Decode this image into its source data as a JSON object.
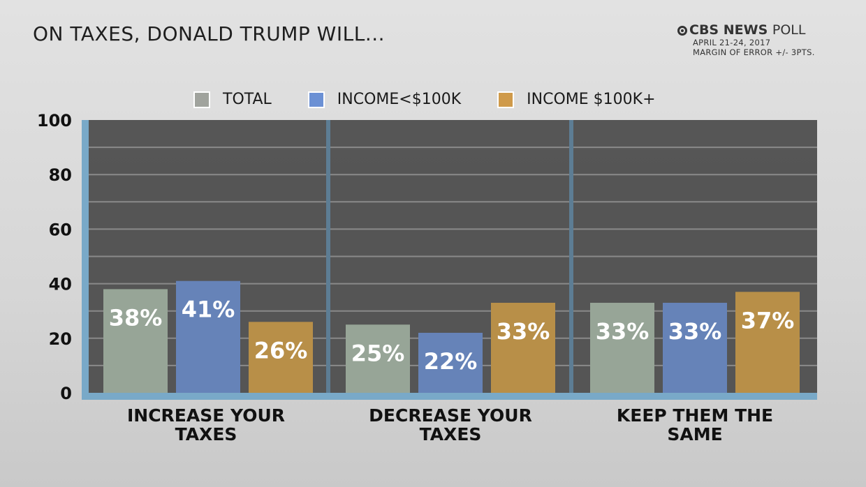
{
  "title": "ON TAXES, DONALD TRUMP WILL...",
  "brand": {
    "name": "CBS NEWS",
    "suffix": "POLL",
    "date": "APRIL 21-24, 2017",
    "margin": "MARGIN OF ERROR +/- 3PTS."
  },
  "colors": {
    "total": "#97a597",
    "low": "#6683b8",
    "high": "#b88f48",
    "axis": "#79a9c8",
    "plot": "#4e4e4e"
  },
  "chart_data": {
    "type": "bar",
    "title": "ON TAXES, DONALD TRUMP WILL...",
    "categories": [
      "INCREASE YOUR TAXES",
      "DECREASE YOUR TAXES",
      "KEEP THEM THE SAME"
    ],
    "series": [
      {
        "name": "TOTAL",
        "values": [
          38,
          25,
          33
        ],
        "labels": [
          "38%",
          "25%",
          "33%"
        ]
      },
      {
        "name": "INCOME<$100K",
        "values": [
          41,
          22,
          33
        ],
        "labels": [
          "41%",
          "22%",
          "33%"
        ]
      },
      {
        "name": "INCOME $100K+",
        "values": [
          26,
          33,
          37
        ],
        "labels": [
          "26%",
          "33%",
          "37%"
        ]
      }
    ],
    "ylim": [
      0,
      100
    ],
    "yticks": [
      "0",
      "20",
      "40",
      "60",
      "80",
      "100"
    ],
    "grid": true,
    "legend": "top"
  }
}
